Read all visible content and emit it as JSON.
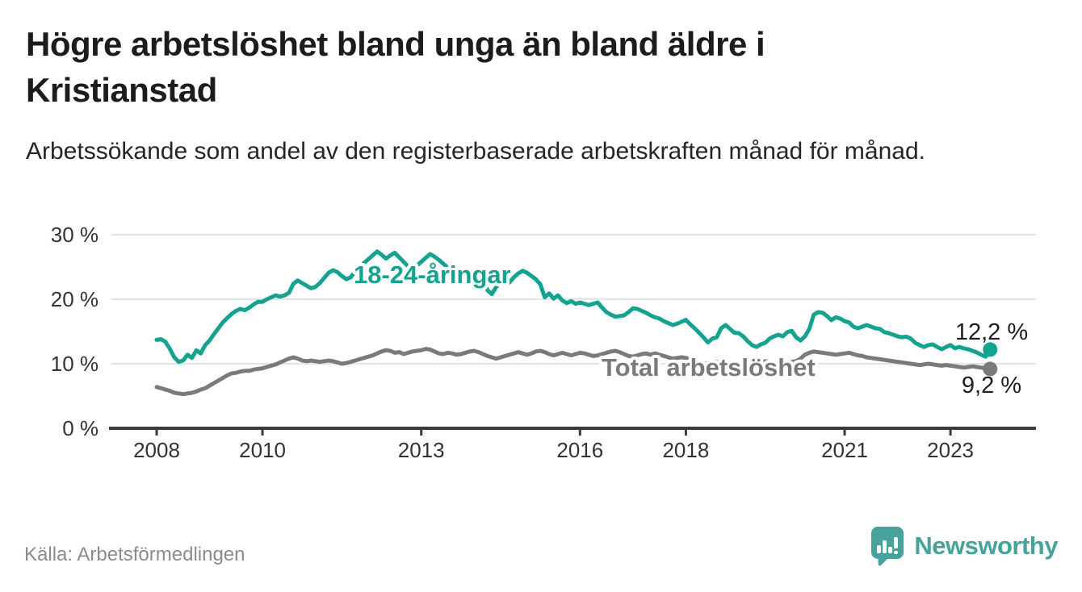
{
  "header": {
    "title": "Högre arbetslöshet bland unga än bland äldre i Kristianstad",
    "subtitle": "Arbetssökande som andel av den registerbaserade arbetskraften månad för månad."
  },
  "footer": {
    "source": "Källa: Arbetsförmedlingen",
    "brand": "Newsworthy"
  },
  "colors": {
    "young_line": "#14a38f",
    "total_line": "#7a7a7a",
    "grid": "#e3e3e3",
    "axis": "#3b3b3b",
    "title_text": "#1c1c1c",
    "muted_text": "#8b8b8b",
    "brand_teal": "#46a39c"
  },
  "chart_data": {
    "type": "line",
    "title": "Högre arbetslöshet bland unga än bland äldre i Kristianstad",
    "subtitle": "Arbetssökande som andel av den registerbaserade arbetskraften månad för månad.",
    "unit": "%",
    "x_start": "2008-01",
    "x_end": "2023-10",
    "x_step": "1 month",
    "x_ticks": [
      2008,
      2010,
      2013,
      2016,
      2018,
      2021,
      2023
    ],
    "y_ticks": [
      {
        "value": 30,
        "label": "30 %"
      },
      {
        "value": 20,
        "label": "20 %"
      },
      {
        "value": 10,
        "label": "10 %"
      },
      {
        "value": 0,
        "label": "0 %"
      }
    ],
    "ylim": [
      0,
      32
    ],
    "grid": "horizontal-only",
    "legend_position": "inline-labels",
    "series": [
      {
        "name": "18-24-åringar",
        "color": "#14a38f",
        "end_label": "12,2 %",
        "end_value": 12.2,
        "values": [
          13.7,
          13.8,
          13.4,
          12.3,
          11.0,
          10.3,
          10.5,
          11.4,
          10.9,
          12.1,
          11.6,
          12.9,
          13.6,
          14.6,
          15.5,
          16.4,
          17.1,
          17.7,
          18.2,
          18.5,
          18.3,
          18.7,
          19.2,
          19.6,
          19.6,
          20.0,
          20.3,
          20.6,
          20.4,
          20.6,
          21.0,
          22.4,
          22.9,
          22.5,
          22.1,
          21.7,
          21.9,
          22.5,
          23.3,
          24.1,
          24.5,
          24.2,
          23.6,
          23.1,
          23.4,
          24.3,
          24.9,
          25.6,
          26.2,
          26.8,
          27.4,
          26.9,
          26.3,
          26.8,
          27.2,
          26.5,
          25.8,
          25.1,
          24.6,
          25.2,
          25.8,
          26.4,
          27.0,
          26.6,
          26.1,
          25.5,
          24.9,
          24.3,
          23.7,
          23.1,
          22.7,
          23.2,
          23.8,
          24.3,
          23.4,
          21.4,
          20.8,
          21.9,
          22.6,
          23.1,
          22.6,
          23.4,
          24.0,
          24.4,
          24.1,
          23.6,
          23.1,
          22.3,
          20.3,
          20.9,
          20.1,
          20.6,
          19.8,
          19.4,
          19.7,
          19.3,
          19.5,
          19.3,
          19.1,
          19.3,
          19.5,
          18.7,
          18.0,
          17.6,
          17.3,
          17.4,
          17.5,
          18.0,
          18.6,
          18.5,
          18.2,
          17.9,
          17.5,
          17.2,
          17.0,
          16.6,
          16.3,
          16.0,
          16.2,
          16.5,
          16.8,
          16.1,
          15.5,
          14.8,
          14.1,
          13.3,
          13.9,
          14.1,
          15.5,
          16.0,
          15.4,
          14.8,
          14.75,
          14.25,
          13.5,
          12.9,
          12.6,
          13.0,
          13.25,
          13.9,
          14.25,
          14.5,
          14.25,
          14.9,
          15.1,
          14.1,
          13.6,
          14.25,
          15.4,
          17.6,
          18.0,
          17.9,
          17.4,
          16.75,
          17.2,
          17.0,
          16.6,
          16.4,
          15.75,
          15.5,
          15.75,
          16.0,
          15.75,
          15.5,
          15.4,
          14.9,
          14.75,
          14.5,
          14.25,
          14.1,
          14.2,
          13.9,
          13.25,
          12.9,
          12.6,
          12.9,
          13.0,
          12.6,
          12.25,
          12.6,
          12.9,
          12.4,
          12.6,
          12.4,
          12.25,
          12.0,
          11.75,
          11.4,
          11.1,
          12.2
        ]
      },
      {
        "name": "Total arbetslöshet",
        "color": "#7a7a7a",
        "end_label": "9,2 %",
        "end_value": 9.2,
        "values": [
          6.4,
          6.2,
          6.0,
          5.8,
          5.5,
          5.4,
          5.3,
          5.4,
          5.5,
          5.7,
          6.0,
          6.2,
          6.6,
          7.0,
          7.4,
          7.8,
          8.2,
          8.5,
          8.6,
          8.8,
          8.9,
          8.9,
          9.1,
          9.2,
          9.3,
          9.5,
          9.7,
          9.9,
          10.2,
          10.5,
          10.8,
          11.0,
          10.8,
          10.5,
          10.4,
          10.5,
          10.4,
          10.3,
          10.4,
          10.5,
          10.4,
          10.2,
          10.0,
          10.1,
          10.3,
          10.5,
          10.7,
          10.9,
          11.1,
          11.3,
          11.6,
          11.9,
          12.1,
          12.0,
          11.7,
          11.8,
          11.5,
          11.7,
          11.9,
          12.0,
          12.1,
          12.3,
          12.2,
          11.9,
          11.6,
          11.5,
          11.7,
          11.6,
          11.4,
          11.5,
          11.7,
          11.9,
          12.0,
          11.8,
          11.5,
          11.2,
          11.0,
          10.8,
          11.0,
          11.2,
          11.4,
          11.6,
          11.8,
          11.6,
          11.4,
          11.6,
          11.9,
          12.0,
          11.8,
          11.5,
          11.3,
          11.5,
          11.7,
          11.5,
          11.3,
          11.5,
          11.7,
          11.6,
          11.4,
          11.2,
          11.3,
          11.5,
          11.7,
          11.9,
          12.0,
          11.8,
          11.5,
          11.2,
          11.1,
          11.3,
          11.5,
          11.6,
          11.4,
          11.6,
          11.4,
          11.2,
          11.0,
          10.8,
          10.9,
          11.0,
          10.9,
          10.7,
          10.5,
          10.3,
          10.1,
          10.0,
          10.2,
          10.3,
          10.2,
          10.1,
          10.0,
          10.1,
          10.0,
          9.9,
          9.8,
          9.9,
          10.0,
          10.2,
          10.4,
          10.3,
          10.2,
          10.1,
          10.0,
          10.2,
          10.3,
          10.4,
          10.8,
          11.4,
          11.7,
          11.9,
          11.8,
          11.7,
          11.6,
          11.5,
          11.4,
          11.5,
          11.6,
          11.7,
          11.5,
          11.3,
          11.2,
          11.0,
          10.9,
          10.8,
          10.7,
          10.6,
          10.5,
          10.4,
          10.3,
          10.2,
          10.1,
          10.0,
          9.9,
          9.8,
          9.9,
          10.0,
          9.9,
          9.8,
          9.7,
          9.8,
          9.7,
          9.6,
          9.5,
          9.4,
          9.5,
          9.6,
          9.5,
          9.4,
          9.3,
          9.2
        ]
      }
    ]
  }
}
